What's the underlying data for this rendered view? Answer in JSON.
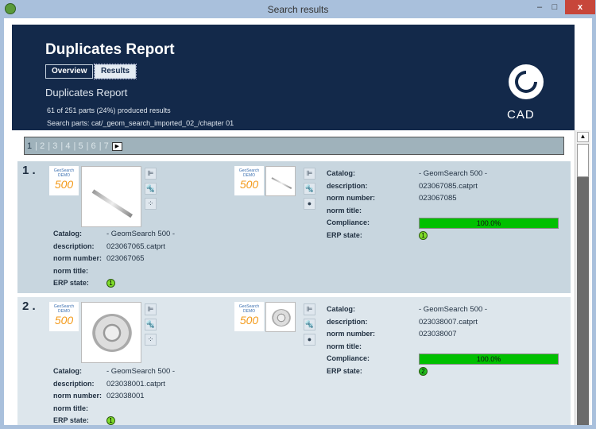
{
  "window": {
    "title": "Search results",
    "minimize": "–",
    "maximize": "□",
    "close": "x"
  },
  "header": {
    "title": "Duplicates Report",
    "tabs": [
      {
        "label": "Overview"
      },
      {
        "label": "Results",
        "active": true
      }
    ],
    "subtitle": "Duplicates Report",
    "summary": "61 of 251 parts (24%) produced results",
    "search_parts": "Search parts: cat/_geom_search_imported_02_/chapter 01",
    "logo": "CADENAS"
  },
  "pager": {
    "pages": [
      "1",
      "2",
      "3",
      "4",
      "5",
      "6",
      "7"
    ],
    "current": "1",
    "next": "▶"
  },
  "catalog_logo": {
    "line1": "GeoSearch",
    "line2": "DEMO",
    "number": "500"
  },
  "labels": {
    "catalog": "Catalog:",
    "description": "description:",
    "norm_number": "norm number:",
    "norm_title": "norm title:",
    "compliance": "Compliance:",
    "erp_state": "ERP state:"
  },
  "results": [
    {
      "index": "1 .",
      "source": {
        "catalog": "- GeomSearch 500 -",
        "description": "023067065.catprt",
        "norm_number": "023067065",
        "norm_title": "",
        "erp_state": "1"
      },
      "match": {
        "catalog": "- GeomSearch 500 -",
        "description": "023067085.catprt",
        "norm_number": "023067085",
        "norm_title": "",
        "compliance": "100.0%",
        "compliance_value": 100,
        "erp_state": "1"
      }
    },
    {
      "index": "2 .",
      "source": {
        "catalog": "- GeomSearch 500 -",
        "description": "023038001.catprt",
        "norm_number": "023038001",
        "norm_title": "",
        "erp_state": "1"
      },
      "match": {
        "catalog": "- GeomSearch 500 -",
        "description": "023038007.catprt",
        "norm_number": "023038007",
        "norm_title": "",
        "compliance": "100.0%",
        "compliance_value": 100,
        "erp_state": "2"
      }
    }
  ],
  "colors": {
    "header_bg": "#13294a",
    "compliance_bar": "#00c000",
    "erp_1": "#7fdc2a",
    "erp_2": "#22c01e"
  }
}
